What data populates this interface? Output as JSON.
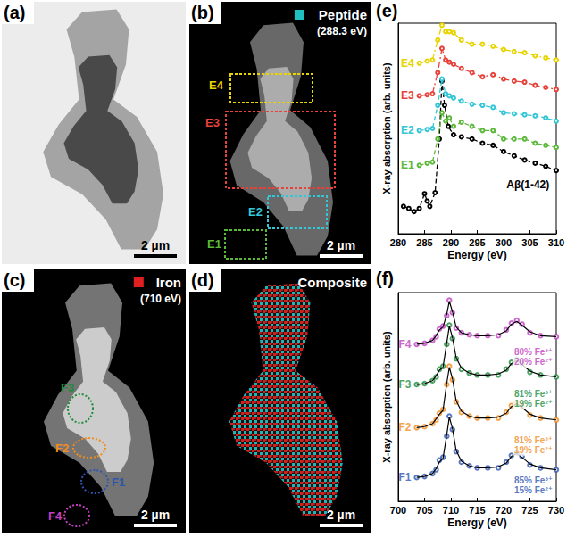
{
  "panels": [
    {
      "letter": "(a)",
      "scale_bar": "2 µm"
    },
    {
      "letter": "(b)",
      "title": "Peptide",
      "subtitle": "(288.3 eV)",
      "color": "#20c0c0",
      "regions": [
        {
          "label": "E1",
          "color": "#5cb83a"
        },
        {
          "label": "E2",
          "color": "#33c6d6"
        },
        {
          "label": "E3",
          "color": "#e8413a"
        },
        {
          "label": "E4",
          "color": "#e8d400"
        }
      ],
      "scale_bar": "2 µm"
    },
    {
      "letter": "(c)",
      "title": "Iron",
      "subtitle": "(710 eV)",
      "color": "#e02020",
      "regions": [
        {
          "label": "F1",
          "color": "#2f55b0"
        },
        {
          "label": "F2",
          "color": "#f08c1e"
        },
        {
          "label": "F3",
          "color": "#1e8c3a"
        },
        {
          "label": "F4",
          "color": "#c040c0"
        }
      ],
      "scale_bar": "2 µm"
    },
    {
      "letter": "(d)",
      "title": "Composite",
      "scale_bar": "2 µm"
    }
  ],
  "chart_data": [
    {
      "panel": "(e)",
      "type": "line",
      "x_label": "Energy (eV)",
      "y_label": "X-ray absorption (arb. units)",
      "xlim": [
        280,
        310
      ],
      "xticks": [
        280,
        285,
        290,
        295,
        300,
        305,
        310
      ],
      "ylim": [
        0,
        10
      ],
      "tick_labels": "x",
      "grid": false,
      "series": [
        {
          "name": "Aβ(1-42)",
          "color": "#000000",
          "marker": "open_circle",
          "line_style": "dashed",
          "x": [
            281,
            282,
            283,
            284,
            285,
            285.5,
            286,
            287,
            287.8,
            288.3,
            288.8,
            289.5,
            290.5,
            292,
            294,
            296,
            298,
            300,
            302,
            304,
            306,
            308,
            310
          ],
          "values": [
            1.3,
            1.2,
            1.05,
            1.2,
            1.9,
            1.55,
            1.3,
            1.95,
            4.5,
            7.25,
            6.1,
            5.1,
            4.7,
            4.6,
            4.5,
            4.3,
            4.2,
            3.9,
            3.7,
            3.5,
            3.35,
            3.2,
            3.0
          ]
        },
        {
          "name": "E1",
          "color": "#5cb83a",
          "marker": "open_circle",
          "line_style": "dashed",
          "x": [
            284,
            285.5,
            286.5,
            287.5,
            288.3,
            289,
            289.7,
            290.5,
            292,
            294,
            296,
            298,
            300,
            302,
            304,
            306,
            308,
            310
          ],
          "values": [
            3.25,
            3.35,
            3.4,
            4.5,
            5.75,
            5.35,
            5.5,
            5.1,
            5.3,
            5.1,
            4.9,
            4.9,
            4.5,
            4.5,
            4.5,
            4.3,
            4.2,
            4.1
          ]
        },
        {
          "name": "E2",
          "color": "#33c6d6",
          "marker": "open_circle",
          "line_style": "dashed",
          "x": [
            284,
            285.5,
            286.5,
            287.5,
            288.3,
            289,
            289.7,
            290.5,
            292,
            294,
            296,
            298,
            300,
            302,
            304,
            306,
            308,
            310
          ],
          "values": [
            4.9,
            4.95,
            5.0,
            6.1,
            7.35,
            6.65,
            6.55,
            6.45,
            6.3,
            6.15,
            6.1,
            6.0,
            5.75,
            5.7,
            5.65,
            5.6,
            5.5,
            5.35
          ]
        },
        {
          "name": "E3",
          "color": "#e8413a",
          "marker": "open_circle",
          "line_style": "dashdot",
          "x": [
            284,
            285.5,
            286.5,
            287.5,
            288.3,
            289,
            289.7,
            290.5,
            292,
            294,
            296,
            298,
            300,
            302,
            304,
            306,
            308,
            310
          ],
          "values": [
            6.55,
            6.6,
            6.65,
            7.65,
            8.8,
            8.25,
            8.15,
            8.05,
            7.85,
            7.65,
            7.45,
            7.55,
            7.35,
            7.25,
            7.2,
            7.05,
            6.95,
            6.85
          ]
        },
        {
          "name": "E4",
          "color": "#e8d400",
          "marker": "open_circle",
          "line_style": "dashdot",
          "x": [
            284,
            285.5,
            286.5,
            287.5,
            288.3,
            289,
            289.7,
            290.5,
            292,
            294,
            296,
            298,
            300,
            302,
            304,
            306,
            308,
            310
          ],
          "values": [
            8.1,
            8.2,
            8.25,
            9.2,
            9.9,
            9.6,
            9.6,
            9.55,
            9.2,
            9.0,
            9.0,
            8.9,
            8.75,
            8.65,
            8.6,
            8.45,
            8.35,
            8.25
          ]
        }
      ]
    },
    {
      "panel": "(f)",
      "type": "scatter",
      "x_label": "Energy (eV)",
      "y_label": "X-ray absorption (arb. units)",
      "xlim": [
        700,
        730
      ],
      "xticks": [
        700,
        705,
        710,
        715,
        720,
        725,
        730
      ],
      "ylim": [
        -0.5,
        10.4
      ],
      "tick_labels": "x",
      "grid": false,
      "x": [
        703.5,
        705,
        706.5,
        707.2,
        707.8,
        708.5,
        709.2,
        709.7,
        710.3,
        711,
        712,
        713.5,
        715,
        717,
        719,
        720.5,
        721.5,
        722.5,
        723.5,
        725,
        727,
        730
      ],
      "series": [
        {
          "name": "F1",
          "color": "#2f55b0",
          "marker": "open_circle",
          "values": [
            0.75,
            0.8,
            0.95,
            1.15,
            1.65,
            1.8,
            2.9,
            3.95,
            3.25,
            2.1,
            1.55,
            1.35,
            1.25,
            1.25,
            1.25,
            1.55,
            1.9,
            2.05,
            1.85,
            1.4,
            1.25,
            1.15
          ],
          "fit": {
            "color": "#000000",
            "line_style": "solid",
            "values": [
              0.75,
              0.8,
              0.95,
              1.2,
              1.55,
              1.75,
              2.95,
              3.9,
              3.3,
              2.15,
              1.6,
              1.35,
              1.25,
              1.25,
              1.3,
              1.5,
              1.85,
              2.0,
              1.8,
              1.45,
              1.25,
              1.15
            ]
          },
          "annotation": [
            "85% Fe³⁺",
            "15% Fe²⁺"
          ]
        },
        {
          "name": "F2",
          "color": "#f08c1e",
          "marker": "open_circle",
          "values": [
            3.35,
            3.4,
            3.55,
            3.75,
            4.1,
            4.3,
            5.6,
            6.55,
            5.85,
            4.7,
            4.15,
            3.95,
            3.85,
            3.85,
            3.85,
            4.15,
            4.5,
            4.65,
            4.45,
            4.0,
            3.85,
            3.75
          ],
          "fit": {
            "color": "#000000",
            "line_style": "solid",
            "values": [
              3.35,
              3.4,
              3.55,
              3.8,
              4.05,
              4.25,
              5.65,
              6.5,
              5.9,
              4.75,
              4.2,
              3.95,
              3.85,
              3.85,
              3.9,
              4.1,
              4.45,
              4.6,
              4.4,
              4.05,
              3.85,
              3.75
            ]
          },
          "annotation": [
            "81% Fe³⁺",
            "19% Fe²⁺"
          ]
        },
        {
          "name": "F3",
          "color": "#1e8c3a",
          "marker": "open_circle",
          "values": [
            5.6,
            5.65,
            5.8,
            6.0,
            6.4,
            6.55,
            7.7,
            8.7,
            8.0,
            6.95,
            6.4,
            6.2,
            6.1,
            6.1,
            6.1,
            6.4,
            6.75,
            6.9,
            6.7,
            6.25,
            6.1,
            6.0
          ],
          "fit": {
            "color": "#000000",
            "line_style": "solid",
            "values": [
              5.6,
              5.65,
              5.8,
              6.05,
              6.35,
              6.5,
              7.75,
              8.65,
              8.05,
              7.0,
              6.45,
              6.2,
              6.1,
              6.1,
              6.15,
              6.35,
              6.7,
              6.85,
              6.65,
              6.3,
              6.1,
              6.0
            ]
          },
          "annotation": [
            "81% Fe³⁺",
            "19% Fe²⁺"
          ]
        },
        {
          "name": "F4",
          "color": "#c040c0",
          "marker": "open_circle",
          "values": [
            7.7,
            7.75,
            7.9,
            8.1,
            8.5,
            8.65,
            9.2,
            10.0,
            9.35,
            8.55,
            8.3,
            8.2,
            8.15,
            8.15,
            8.15,
            8.45,
            8.8,
            8.95,
            8.75,
            8.3,
            8.15,
            8.1
          ],
          "fit": {
            "color": "#000000",
            "line_style": "solid",
            "values": [
              7.7,
              7.75,
              7.9,
              8.15,
              8.45,
              8.6,
              9.25,
              9.95,
              9.4,
              8.6,
              8.3,
              8.2,
              8.15,
              8.15,
              8.2,
              8.4,
              8.75,
              8.9,
              8.7,
              8.35,
              8.15,
              8.1
            ]
          },
          "annotation": [
            "80% Fe³⁺",
            "20% Fe²⁺"
          ]
        }
      ]
    }
  ]
}
